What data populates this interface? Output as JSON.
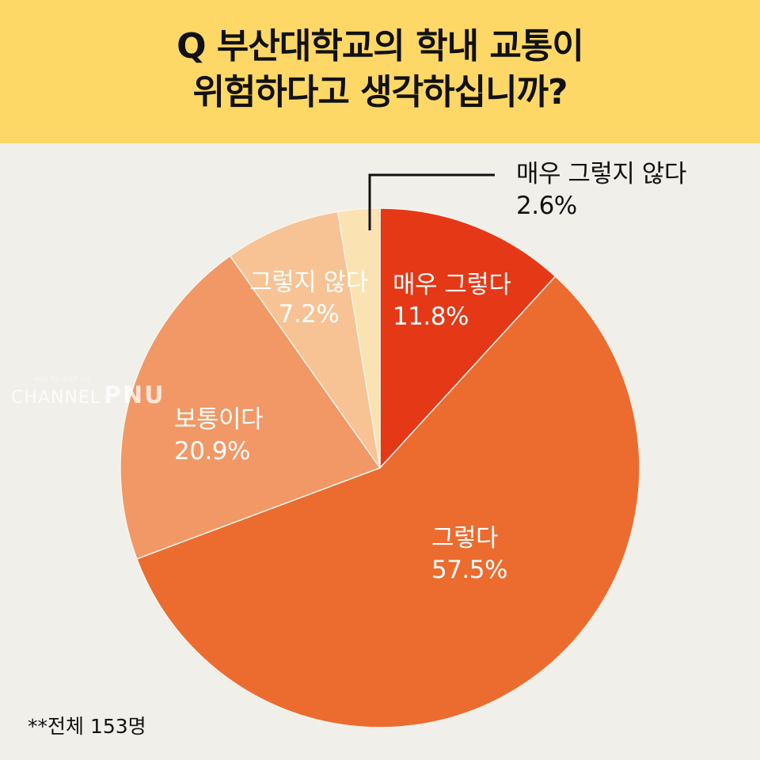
{
  "header": {
    "title_line1": "Q 부산대학교의 학내 교통이",
    "title_line2": "위험하다고 생각하십니까?",
    "background": "#fed866"
  },
  "chart_data": {
    "type": "pie",
    "title": "Q 부산대학교의 학내 교통이 위험하다고 생각하십니까?",
    "categories": [
      "매우 그렇다",
      "그렇다",
      "보통이다",
      "그렇지 않다",
      "매우 그렇지 않다"
    ],
    "values": [
      11.8,
      57.5,
      20.9,
      7.2,
      2.6
    ],
    "unit": "%",
    "colors": [
      "#e43817",
      "#ec6b2f",
      "#f19866",
      "#f7c394",
      "#fbe2b2"
    ],
    "start_angle": "12 o'clock, clockwise",
    "legend": "none (direct labels)",
    "sample_note": "**전체 153명"
  },
  "labels": [
    {
      "name": "매우 그렇다",
      "value": "11.8%"
    },
    {
      "name": "그렇다",
      "value": "57.5%"
    },
    {
      "name": "보통이다",
      "value": "20.9%"
    },
    {
      "name": "그렇지 않다",
      "value": "7.2%"
    },
    {
      "name": "매우 그렇지 않다",
      "value": "2.6%"
    }
  ],
  "watermark": {
    "tagline": "미래를 여는 효원의 소리",
    "brand": "CHANNEL",
    "brand_bold": "PNU"
  },
  "footer": {
    "note": "**전체 153명"
  }
}
